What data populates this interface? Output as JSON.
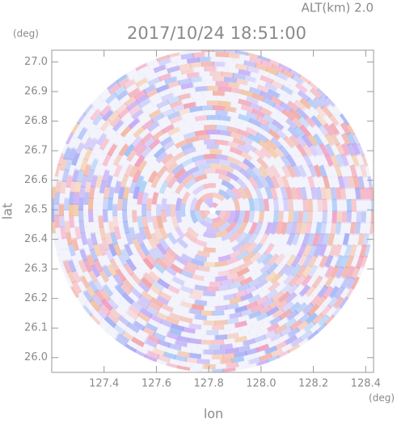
{
  "chart_data": {
    "type": "image",
    "title": "2017/10/24 18:51:00",
    "subtitle": "ALT(km) 2.0",
    "x_label": "lon",
    "x_unit": "(deg)",
    "y_label": "lat",
    "y_unit": "(deg)",
    "xlim": [
      127.2,
      128.43
    ],
    "ylim": [
      25.95,
      27.04
    ],
    "xticks": [
      127.4,
      127.6,
      127.8,
      {
        "value": 128.0,
        "label": "128.0"
      },
      128.2,
      128.4
    ],
    "yticks": [
      {
        "value": 26.0,
        "label": "26.0"
      },
      26.1,
      26.2,
      26.3,
      26.4,
      26.5,
      26.6,
      26.7,
      26.8,
      26.9,
      {
        "value": 27.0,
        "label": "27.0"
      }
    ]
  }
}
